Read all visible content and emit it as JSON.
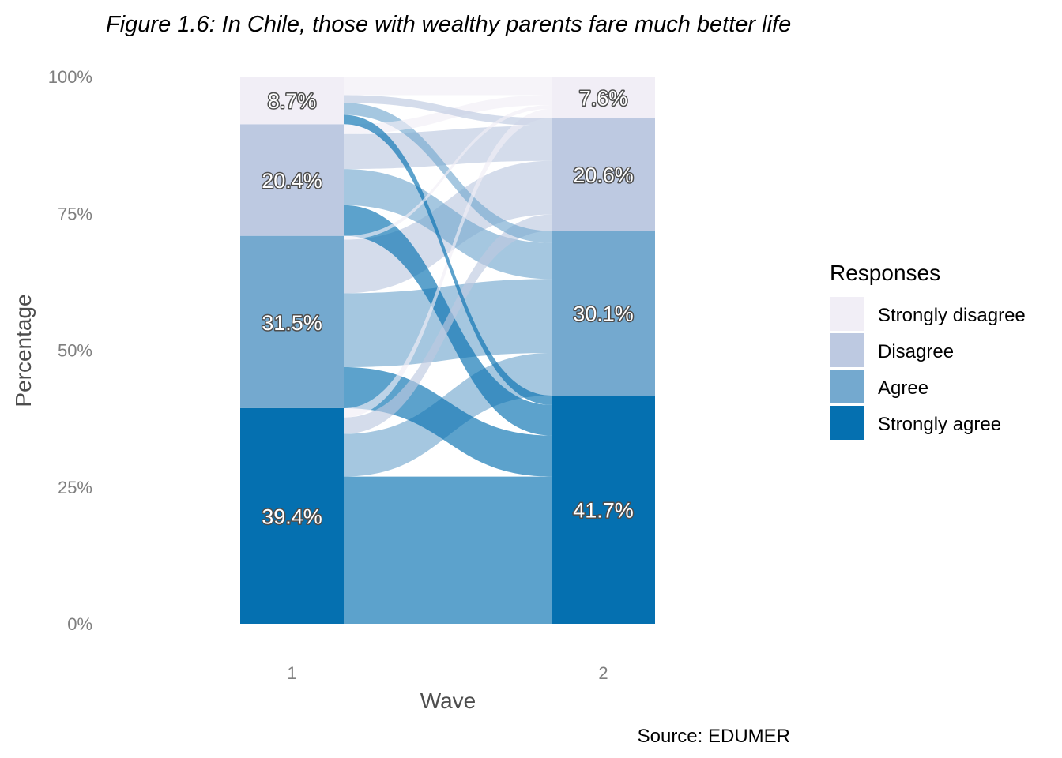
{
  "title": "Figure 1.6: In Chile, those with wealthy parents fare much better life",
  "caption": "Source: EDUMER",
  "colors": {
    "Strongly disagree": "#f1eef6",
    "Disagree": "#bdc9e1",
    "Agree": "#74a9cf",
    "Strongly agree": "#0570b0"
  },
  "chart_data": {
    "type": "alluvial",
    "xlabel": "Wave",
    "ylabel": "Percentage",
    "x_ticks": [
      "1",
      "2"
    ],
    "y_ticks": [
      "0%",
      "25%",
      "50%",
      "75%",
      "100%"
    ],
    "ylim": [
      0,
      100
    ],
    "categories": [
      "Strongly disagree",
      "Disagree",
      "Agree",
      "Strongly agree"
    ],
    "waves": [
      {
        "wave": "1",
        "values": {
          "Strongly disagree": 8.7,
          "Disagree": 20.4,
          "Agree": 31.5,
          "Strongly agree": 39.4
        },
        "labels": {
          "Strongly disagree": "8.7%",
          "Disagree": "20.4%",
          "Agree": "31.5%",
          "Strongly agree": "39.4%"
        }
      },
      {
        "wave": "2",
        "values": {
          "Strongly disagree": 7.6,
          "Disagree": 20.6,
          "Agree": 30.1,
          "Strongly agree": 41.7
        },
        "labels": {
          "Strongly disagree": "7.6%",
          "Disagree": "20.6%",
          "Agree": "30.1%",
          "Strongly agree": "41.7%"
        }
      }
    ],
    "flows": [
      {
        "from": "Strongly agree",
        "to": "Strongly agree",
        "value": 26.9
      },
      {
        "from": "Strongly agree",
        "to": "Agree",
        "value": 7.8
      },
      {
        "from": "Strongly agree",
        "to": "Disagree",
        "value": 3.0
      },
      {
        "from": "Strongly agree",
        "to": "Strongly disagree",
        "value": 1.7
      },
      {
        "from": "Agree",
        "to": "Strongly agree",
        "value": 7.5
      },
      {
        "from": "Agree",
        "to": "Agree",
        "value": 13.5
      },
      {
        "from": "Agree",
        "to": "Disagree",
        "value": 9.8
      },
      {
        "from": "Agree",
        "to": "Strongly disagree",
        "value": 0.7
      },
      {
        "from": "Disagree",
        "to": "Strongly agree",
        "value": 5.6
      },
      {
        "from": "Disagree",
        "to": "Agree",
        "value": 6.6
      },
      {
        "from": "Disagree",
        "to": "Disagree",
        "value": 6.4
      },
      {
        "from": "Disagree",
        "to": "Strongly disagree",
        "value": 1.8
      },
      {
        "from": "Strongly disagree",
        "to": "Strongly agree",
        "value": 1.7
      },
      {
        "from": "Strongly disagree",
        "to": "Agree",
        "value": 2.2
      },
      {
        "from": "Strongly disagree",
        "to": "Disagree",
        "value": 1.4
      },
      {
        "from": "Strongly disagree",
        "to": "Strongly disagree",
        "value": 3.4
      }
    ],
    "legend": {
      "title": "Responses",
      "position": "right",
      "items": [
        "Strongly disagree",
        "Disagree",
        "Agree",
        "Strongly agree"
      ]
    },
    "grid": false
  }
}
